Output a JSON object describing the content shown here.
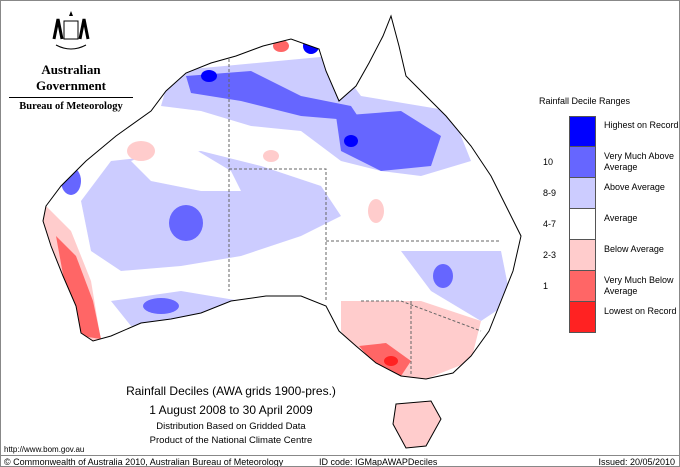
{
  "header": {
    "government": "Australian Government",
    "agency": "Bureau of Meteorology"
  },
  "legend": {
    "title": "Rainfall Decile Ranges",
    "items": [
      {
        "decile": "",
        "label": "Highest on Record",
        "color": "#0000ff"
      },
      {
        "decile": "10",
        "label": "Very Much Above Average",
        "color": "#6666ff"
      },
      {
        "decile": "8-9",
        "label": "Above Average",
        "color": "#ccccff"
      },
      {
        "decile": "4-7",
        "label": "Average",
        "color": "#ffffff"
      },
      {
        "decile": "2-3",
        "label": "Below Average",
        "color": "#ffcccc"
      },
      {
        "decile": "1",
        "label": "Very Much Below Average",
        "color": "#ff6666"
      },
      {
        "decile": "",
        "label": "Lowest on Record",
        "color": "#ff2222"
      }
    ]
  },
  "captions": {
    "title": "Rainfall Deciles (AWA grids 1900-pres.)",
    "period": "1 August 2008 to 30 April 2009",
    "distribution": "Distribution Based on Gridded Data",
    "product": "Product of the National Climate Centre"
  },
  "url": "http://www.bom.gov.au",
  "footer": {
    "copyright": "© Commonwealth of Australia 2010, Australian Bureau of Meteorology",
    "id_code": "ID code: IGMapAWAPDeciles",
    "issued": "Issued: 20/05/2010"
  }
}
